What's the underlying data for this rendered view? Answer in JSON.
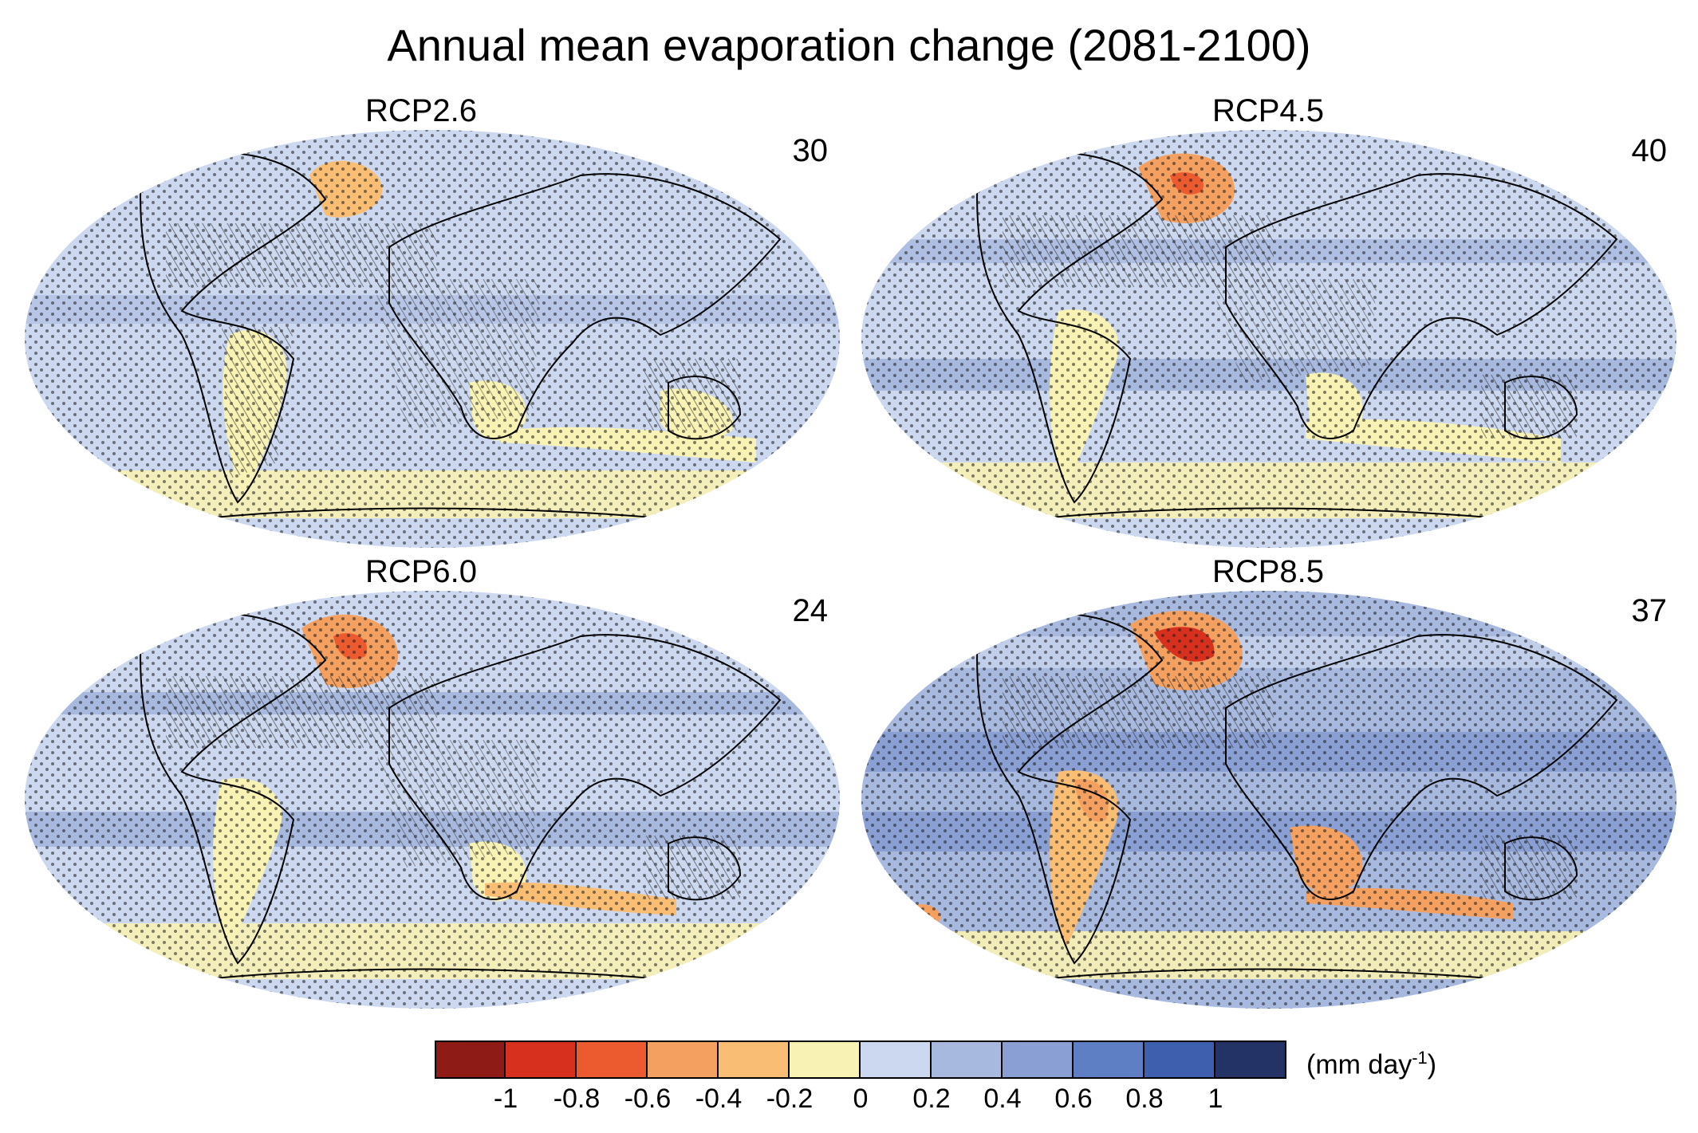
{
  "title": "Annual mean evaporation change (2081-2100)",
  "panels": [
    {
      "label": "RCP2.6",
      "count": "30"
    },
    {
      "label": "RCP4.5",
      "count": "40"
    },
    {
      "label": "RCP6.0",
      "count": "24"
    },
    {
      "label": "RCP8.5",
      "count": "37"
    }
  ],
  "colorbar": {
    "colors": [
      "#8e1b16",
      "#d8301f",
      "#ec5a30",
      "#f4a060",
      "#f9bd74",
      "#f8f2b4",
      "#ccd8ef",
      "#a8b9e0",
      "#8a9fd4",
      "#5e7fc3",
      "#3e5fae",
      "#233366"
    ],
    "ticks": [
      "-1",
      "-0.8",
      "-0.6",
      "-0.4",
      "-0.2",
      "0",
      "0.2",
      "0.4",
      "0.6",
      "0.8",
      "1"
    ],
    "units_base": "(mm day",
    "units_sup": "-1",
    "units_close": ")"
  },
  "legend_meaning": {
    "stippling": "dots",
    "hatching": "diagonal lines"
  }
}
